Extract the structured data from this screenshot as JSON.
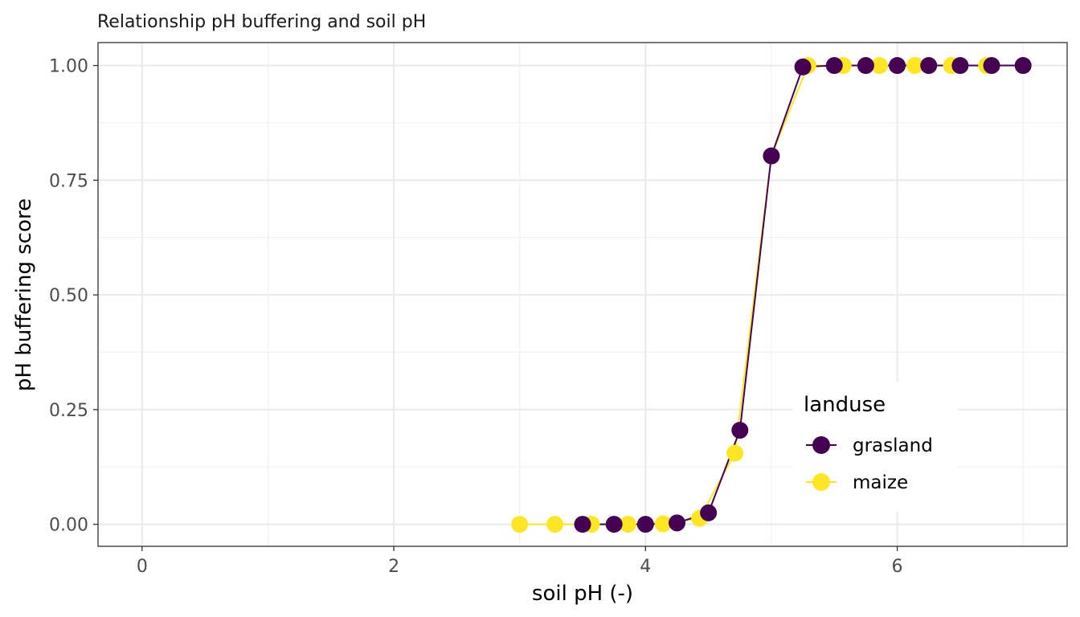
{
  "chart_data": {
    "type": "line",
    "title": "Relationship pH buffering and soil pH",
    "xlabel": "soil pH (-)",
    "ylabel": "pH buffering score",
    "xlim": [
      -0.35,
      7.35
    ],
    "ylim": [
      -0.048,
      1.05
    ],
    "xticks": [
      0,
      2,
      4,
      6
    ],
    "xtick_labels": [
      "0",
      "2",
      "4",
      "6"
    ],
    "xminor": [
      1,
      3,
      5,
      7
    ],
    "yticks": [
      0,
      0.25,
      0.5,
      0.75,
      1.0
    ],
    "ytick_labels": [
      "0.00",
      "0.25",
      "0.50",
      "0.75",
      "1.00"
    ],
    "yminor": [
      0.125,
      0.375,
      0.625,
      0.875
    ],
    "grid": true,
    "legend": {
      "title": "landuse",
      "position": "inside-bottom-right"
    },
    "series": [
      {
        "name": "grasland",
        "color": "#440154",
        "x": [
          3.5,
          3.75,
          4.0,
          4.25,
          4.5,
          4.75,
          5.0,
          5.25,
          5.5,
          5.75,
          6.0,
          6.25,
          6.5,
          6.75,
          7.0
        ],
        "y": [
          0.0,
          0.0,
          0.0,
          0.003,
          0.025,
          0.205,
          0.803,
          0.997,
          1.0,
          1.0,
          1.0,
          1.0,
          1.0,
          1.0,
          1.0
        ]
      },
      {
        "name": "maize",
        "color": "#FDE725",
        "x": [
          3.0,
          3.28,
          3.57,
          3.86,
          4.14,
          4.43,
          4.71,
          5.0,
          5.29,
          5.57,
          5.86,
          6.14,
          6.43,
          6.71,
          7.0
        ],
        "y": [
          0.0,
          0.0,
          0.0,
          0.0,
          0.001,
          0.013,
          0.155,
          0.803,
          1.0,
          1.0,
          1.0,
          1.0,
          1.0,
          1.0,
          1.0
        ]
      }
    ]
  }
}
